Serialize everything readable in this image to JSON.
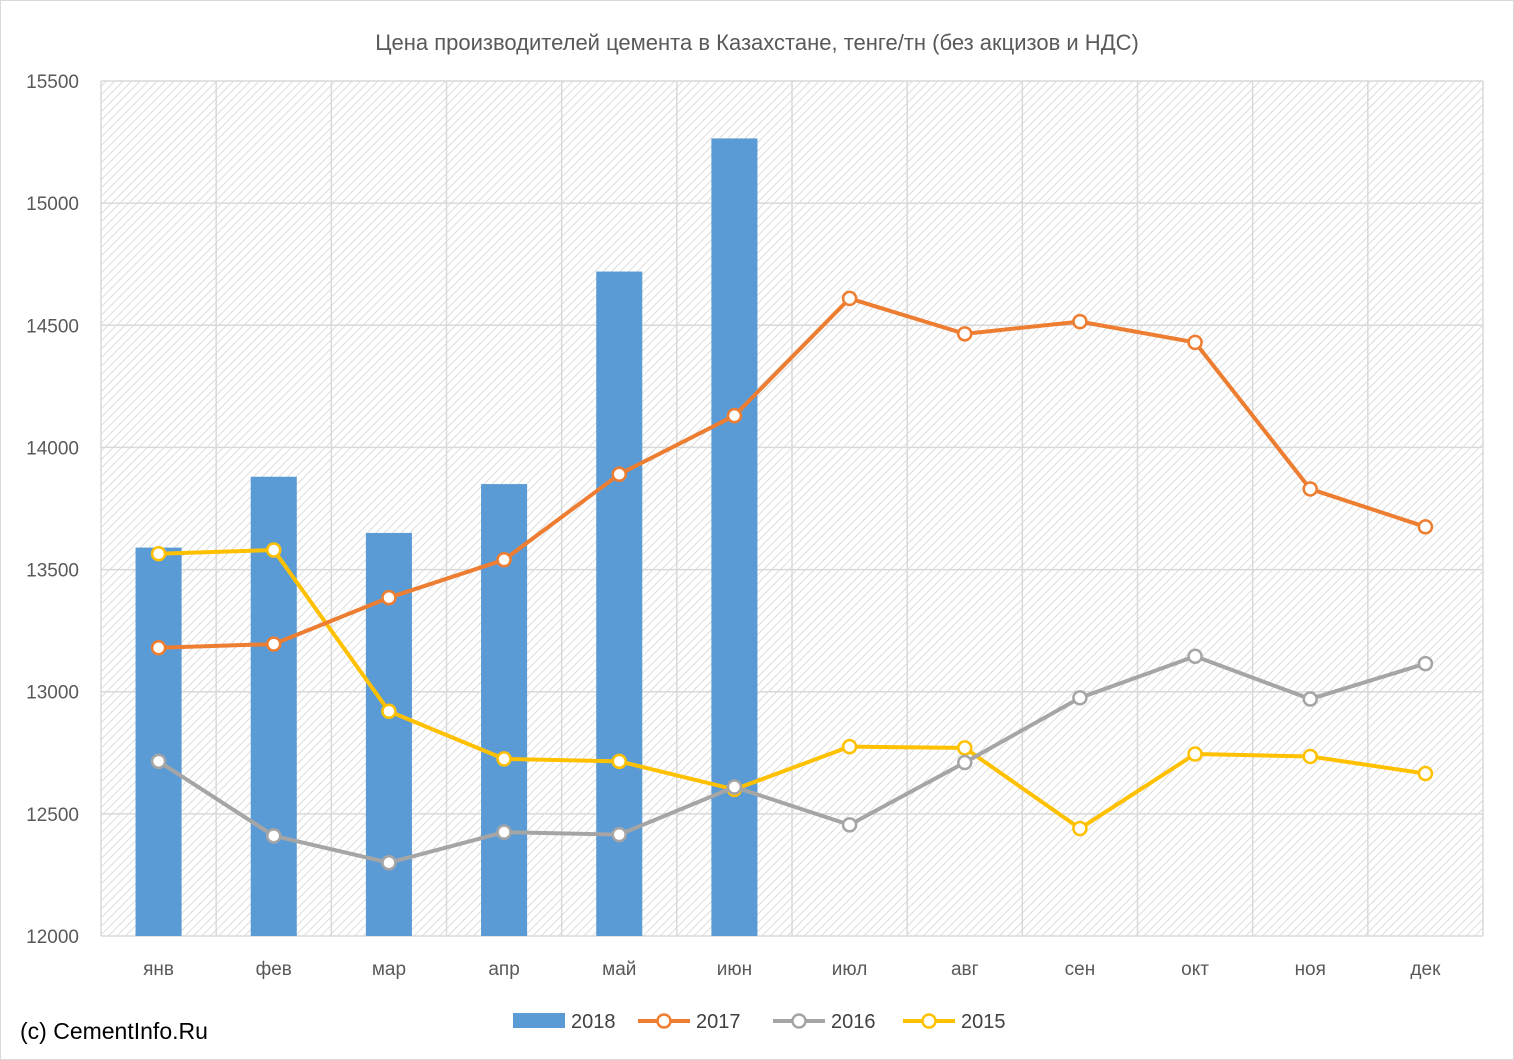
{
  "chart_data": {
    "type": "bar",
    "title": "Цена производителей цемента в Казахстане, тенге/тн (без акцизов и НДС)",
    "xlabel": "",
    "ylabel": "",
    "ylim": [
      12000,
      15500
    ],
    "yticks": [
      12000,
      12500,
      13000,
      13500,
      14000,
      14500,
      15000,
      15500
    ],
    "categories": [
      "янв",
      "фев",
      "мар",
      "апр",
      "май",
      "июн",
      "июл",
      "авг",
      "сен",
      "окт",
      "ноя",
      "дек"
    ],
    "grid": true,
    "legend_position": "bottom",
    "series": [
      {
        "name": "2018",
        "kind": "bar",
        "color": "#5b9bd5",
        "values": [
          13590,
          13880,
          13650,
          13850,
          14720,
          15265,
          null,
          null,
          null,
          null,
          null,
          null
        ]
      },
      {
        "name": "2017",
        "kind": "line",
        "color": "#ed7d31",
        "values": [
          13180,
          13195,
          13385,
          13540,
          13890,
          14130,
          14610,
          14465,
          14515,
          14430,
          13830,
          13675
        ]
      },
      {
        "name": "2016",
        "kind": "line",
        "color": "#a5a5a5",
        "values": [
          12715,
          12410,
          12300,
          12425,
          12415,
          12610,
          12455,
          12710,
          12975,
          13145,
          12970,
          13115
        ]
      },
      {
        "name": "2015",
        "kind": "line",
        "color": "#ffc000",
        "values": [
          13565,
          13580,
          12920,
          12725,
          12715,
          12600,
          12775,
          12770,
          12440,
          12745,
          12735,
          12665
        ]
      }
    ]
  },
  "copyright": "(c) CementInfo.Ru"
}
